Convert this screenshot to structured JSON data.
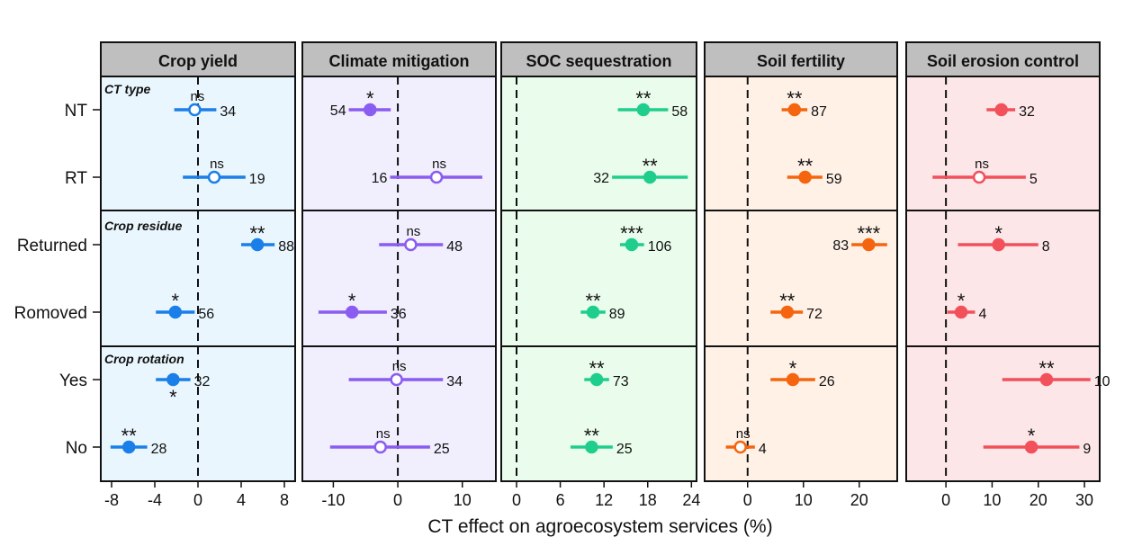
{
  "chart_data": {
    "type": "forest",
    "xlabel": "CT effect on agroecosystem services (%)",
    "rows": [
      "NT",
      "RT",
      "Returned",
      "Romoved",
      "Yes",
      "No"
    ],
    "groups": [
      {
        "label": "CT type",
        "rows": [
          0,
          1
        ]
      },
      {
        "label": "Crop residue",
        "rows": [
          2,
          3
        ]
      },
      {
        "label": "Crop rotation",
        "rows": [
          4,
          5
        ]
      }
    ],
    "grid": false,
    "reference_line": 0,
    "panels": [
      {
        "title": "Crop yield",
        "color": "#1a7fe8",
        "bg": "#eaf6fe",
        "xlim": [
          -9,
          9
        ],
        "ticks": [
          -8,
          -4,
          0,
          4,
          8
        ],
        "points": [
          {
            "mean": -0.3,
            "lo": -2.2,
            "hi": 1.7,
            "n": "34",
            "sig": "ns",
            "open": true
          },
          {
            "mean": 1.5,
            "lo": -1.4,
            "hi": 4.4,
            "n": "19",
            "sig": "ns",
            "open": true
          },
          {
            "mean": 5.5,
            "lo": 4.0,
            "hi": 7.1,
            "n": "88",
            "sig": "**"
          },
          {
            "mean": -2.1,
            "lo": -3.9,
            "hi": -0.3,
            "n": "56",
            "sig": "*"
          },
          {
            "mean": -2.3,
            "lo": -3.9,
            "hi": -0.7,
            "n": "32",
            "sig": "*",
            "sig_below": true
          },
          {
            "mean": -6.4,
            "lo": -8.1,
            "hi": -4.7,
            "n": "28",
            "sig": "**"
          }
        ]
      },
      {
        "title": "Climate mitigation",
        "color": "#8a5cf0",
        "bg": "#f1eefe",
        "xlim": [
          -14.8,
          15.2
        ],
        "ticks": [
          -10,
          0,
          10
        ],
        "points": [
          {
            "mean": -4.3,
            "lo": -7.6,
            "hi": -1.1,
            "n": "54",
            "sig": "*",
            "n_left": true
          },
          {
            "mean": 6.0,
            "lo": -1.2,
            "hi": 13.1,
            "n": "16",
            "sig": "ns",
            "open": true,
            "n_left": true
          },
          {
            "mean": 2.0,
            "lo": -2.9,
            "hi": 7.0,
            "n": "48",
            "sig": "ns",
            "open": true
          },
          {
            "mean": -7.1,
            "lo": -12.3,
            "hi": -1.7,
            "n": "36",
            "sig": "*"
          },
          {
            "mean": -0.2,
            "lo": -7.6,
            "hi": 7.0,
            "n": "34",
            "sig": "ns",
            "open": true
          },
          {
            "mean": -2.7,
            "lo": -10.5,
            "hi": 5.0,
            "n": "25",
            "sig": "ns",
            "open": true
          }
        ]
      },
      {
        "title": "SOC sequestration",
        "color": "#1fce8c",
        "bg": "#eafdec",
        "xlim": [
          -2.1,
          24.7
        ],
        "ticks": [
          0,
          6,
          12,
          18,
          24
        ],
        "points": [
          {
            "mean": 17.4,
            "lo": 13.9,
            "hi": 20.8,
            "n": "58",
            "sig": "**"
          },
          {
            "mean": 18.3,
            "lo": 13.1,
            "hi": 23.5,
            "n": "32",
            "sig": "**",
            "n_left": true
          },
          {
            "mean": 15.8,
            "lo": 14.2,
            "hi": 17.5,
            "n": "106",
            "sig": "***"
          },
          {
            "mean": 10.5,
            "lo": 8.8,
            "hi": 12.2,
            "n": "89",
            "sig": "**"
          },
          {
            "mean": 11.0,
            "lo": 9.3,
            "hi": 12.7,
            "n": "73",
            "sig": "**"
          },
          {
            "mean": 10.3,
            "lo": 7.4,
            "hi": 13.2,
            "n": "25",
            "sig": "**"
          }
        ]
      },
      {
        "title": "Soil fertility",
        "color": "#f5650f",
        "bg": "#fff1e6",
        "xlim": [
          -7.7,
          26.8
        ],
        "ticks": [
          0,
          10,
          20
        ],
        "points": [
          {
            "mean": 8.4,
            "lo": 6.1,
            "hi": 10.7,
            "n": "87",
            "sig": "**"
          },
          {
            "mean": 10.3,
            "lo": 7.1,
            "hi": 13.4,
            "n": "59",
            "sig": "**"
          },
          {
            "mean": 21.7,
            "lo": 18.6,
            "hi": 25.0,
            "n": "83",
            "sig": "***",
            "n_left": true
          },
          {
            "mean": 7.1,
            "lo": 4.1,
            "hi": 9.9,
            "n": "72",
            "sig": "**"
          },
          {
            "mean": 8.1,
            "lo": 4.1,
            "hi": 12.1,
            "n": "26",
            "sig": "*"
          },
          {
            "mean": -1.3,
            "lo": -3.9,
            "hi": 1.3,
            "n": "4",
            "sig": "ns",
            "open": true
          }
        ]
      },
      {
        "title": "Soil erosion control",
        "color": "#f2505a",
        "bg": "#fde6e8",
        "xlim": [
          -8.6,
          33.3
        ],
        "ticks": [
          0,
          10,
          20,
          30
        ],
        "points": [
          {
            "mean": 12.0,
            "lo": 8.8,
            "hi": 15.0,
            "n": "32",
            "sig": ""
          },
          {
            "mean": 7.2,
            "lo": -2.9,
            "hi": 17.3,
            "n": "5",
            "sig": "ns",
            "open": true
          },
          {
            "mean": 11.4,
            "lo": 2.6,
            "hi": 20.0,
            "n": "8",
            "sig": "*"
          },
          {
            "mean": 3.3,
            "lo": 0.3,
            "hi": 6.3,
            "n": "4",
            "sig": "*"
          },
          {
            "mean": 21.8,
            "lo": 12.2,
            "hi": 31.3,
            "n": "10",
            "sig": "**"
          },
          {
            "mean": 18.5,
            "lo": 8.1,
            "hi": 28.9,
            "n": "9",
            "sig": "*"
          }
        ]
      }
    ]
  }
}
